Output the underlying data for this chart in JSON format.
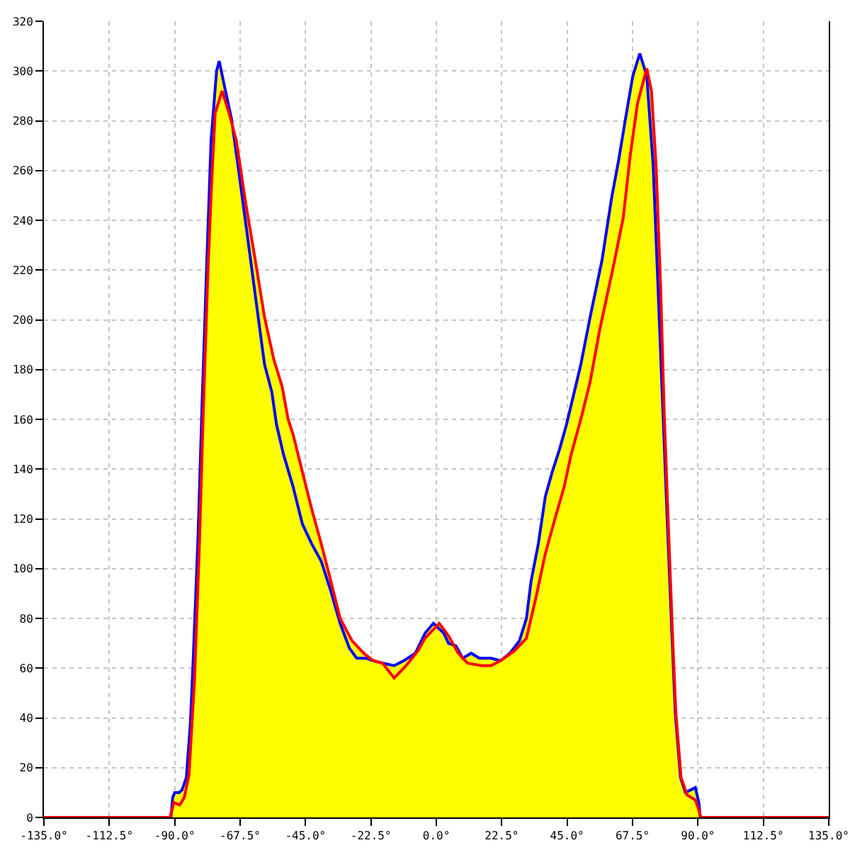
{
  "chart_data": {
    "type": "line",
    "xlim": [
      -135,
      135
    ],
    "xticks": [
      {
        "value": -135,
        "label": "-135.0°"
      },
      {
        "value": -112.5,
        "label": "-112.5°"
      },
      {
        "value": -90,
        "label": "-90.0°"
      },
      {
        "value": -67.5,
        "label": "-67.5°"
      },
      {
        "value": -45,
        "label": "-45.0°"
      },
      {
        "value": -22.5,
        "label": "-22.5°"
      },
      {
        "value": 0,
        "label": "0.0°"
      },
      {
        "value": 22.5,
        "label": "22.5°"
      },
      {
        "value": 45,
        "label": "45.0°"
      },
      {
        "value": 67.5,
        "label": "67.5°"
      },
      {
        "value": 90,
        "label": "90.0°"
      },
      {
        "value": 112.5,
        "label": "112.5°"
      },
      {
        "value": 135,
        "label": "135.0°"
      }
    ],
    "ylim": [
      0,
      320
    ],
    "yticks": [
      0,
      20,
      40,
      60,
      80,
      100,
      120,
      140,
      160,
      180,
      200,
      220,
      240,
      260,
      280,
      300,
      320
    ],
    "grid": true,
    "series": [
      {
        "type": "area",
        "color": "#ffff00",
        "x": [
          -135,
          -91.6,
          -90.7,
          -90,
          -88.5,
          -87.5,
          -86,
          -84.6,
          -83.7,
          -82,
          -80.7,
          -79,
          -77.5,
          -75.6,
          -74.7,
          -72.9,
          -71.3,
          -68.8,
          -65.6,
          -62.3,
          -59.1,
          -55.9,
          -53,
          -51,
          -49.3,
          -46.1,
          -42.9,
          -39.6,
          -36.3,
          -33.1,
          -29,
          -25,
          -21.7,
          -18.5,
          -14.5,
          -11.2,
          -7.2,
          -3.9,
          -1,
          1,
          4.2,
          6.7,
          9.1,
          12,
          14.8,
          18.8,
          22.1,
          25.3,
          28.6,
          31,
          32.6,
          35.1,
          37.5,
          39.9,
          42.4,
          44.8,
          49.7,
          52.9,
          57,
          60.3,
          62.7,
          65.1,
          67.6,
          70,
          72.4,
          74,
          75.6,
          77.2,
          78.4,
          80,
          81.3,
          82.4,
          84.2,
          85.7,
          89.1,
          90.3,
          91,
          135
        ],
        "values": [
          0,
          0,
          8,
          10,
          10,
          11,
          16,
          38,
          62,
          112,
          162,
          222,
          272,
          300,
          304,
          294,
          283,
          272,
          247,
          224,
          201,
          184,
          173,
          160,
          154,
          139,
          124,
          110,
          95,
          80,
          71,
          66,
          63,
          62,
          61,
          63,
          66,
          74,
          78,
          78,
          73,
          69,
          64,
          66,
          64,
          64,
          63,
          66,
          71,
          80,
          95,
          110,
          129,
          139,
          148,
          158,
          182,
          201,
          224,
          249,
          264,
          281,
          298,
          307,
          301,
          292,
          262,
          212,
          162,
          112,
          72,
          42,
          16,
          10,
          12,
          6,
          0,
          0
        ]
      },
      {
        "color": "#0000ff",
        "x": [
          -91.3,
          -90.7,
          -90,
          -88.5,
          -87.5,
          -86,
          -84.6,
          -83.7,
          -82,
          -80.7,
          -79,
          -77.5,
          -75.6,
          -74.7,
          -72.9,
          -70.5,
          -68,
          -65.6,
          -63.2,
          -60.7,
          -59.1,
          -56.6,
          -55,
          -52.6,
          -49.3,
          -46.1,
          -42.9,
          -39.6,
          -36.3,
          -33.1,
          -29.9,
          -27.4,
          -24.2,
          -21.7,
          -18.5,
          -14.5,
          -11.2,
          -7.2,
          -3.9,
          -1,
          2.6,
          4.2,
          6.7,
          9.1,
          12,
          14.8,
          18.8,
          22.1,
          25.3,
          28.6,
          31,
          32.6,
          35.1,
          37.5,
          39.9,
          42.4,
          44.8,
          49.7,
          52.9,
          57,
          60.3,
          62.7,
          65.1,
          67.6,
          70,
          72.4,
          74.6,
          76.3,
          78,
          79.7,
          81.1,
          82.2,
          84,
          85.7,
          89.1,
          90.3,
          90.8
        ],
        "values": [
          0,
          8,
          10,
          10,
          11,
          16,
          38,
          62,
          112,
          162,
          222,
          272,
          300,
          304,
          294,
          281,
          260,
          239,
          218,
          196,
          182,
          171,
          158,
          146,
          133,
          118,
          110,
          103,
          91,
          78,
          68,
          64,
          64,
          63,
          62,
          61,
          63,
          66,
          74,
          78,
          74,
          70,
          69,
          64,
          66,
          64,
          64,
          63,
          66,
          71,
          80,
          95,
          110,
          129,
          139,
          148,
          158,
          182,
          201,
          224,
          249,
          264,
          281,
          298,
          307,
          298,
          262,
          212,
          162,
          112,
          72,
          42,
          16,
          10,
          12,
          6,
          0
        ]
      },
      {
        "color": "#ff0000",
        "x": [
          -135,
          -91.6,
          -90.3,
          -88.3,
          -86.7,
          -85.1,
          -83.2,
          -81.5,
          -80.2,
          -78.5,
          -77.3,
          -76.1,
          -73.7,
          -71.3,
          -68.8,
          -65.6,
          -62.3,
          -59.1,
          -55.9,
          -53,
          -51,
          -49.3,
          -46.1,
          -42.9,
          -39.6,
          -36.3,
          -33.1,
          -29,
          -25,
          -21.7,
          -18.5,
          -14.5,
          -10.4,
          -6.3,
          -3.9,
          1,
          4.2,
          7.5,
          10.7,
          15.6,
          18.8,
          22.1,
          26.9,
          31,
          34.2,
          37.5,
          40.8,
          44,
          46.4,
          49.7,
          52.9,
          56.2,
          61,
          64.3,
          66.7,
          69.2,
          72.4,
          74,
          75.6,
          77.2,
          78.4,
          80,
          81.3,
          82.4,
          84.2,
          86.3,
          89.1,
          90.3,
          91,
          135
        ],
        "values": [
          0,
          0,
          6,
          5,
          8,
          17,
          55,
          110,
          162,
          222,
          255,
          283,
          292,
          283,
          272,
          247,
          224,
          201,
          184,
          173,
          160,
          154,
          139,
          124,
          110,
          95,
          80,
          71,
          66,
          63,
          62,
          56,
          61,
          67,
          72,
          78,
          73,
          66,
          62,
          61,
          61,
          63,
          67,
          72,
          88,
          106,
          120,
          133,
          146,
          160,
          175,
          196,
          222,
          241,
          266,
          287,
          301,
          292,
          262,
          212,
          162,
          112,
          72,
          42,
          16,
          9,
          7,
          3,
          0,
          0
        ]
      }
    ]
  }
}
